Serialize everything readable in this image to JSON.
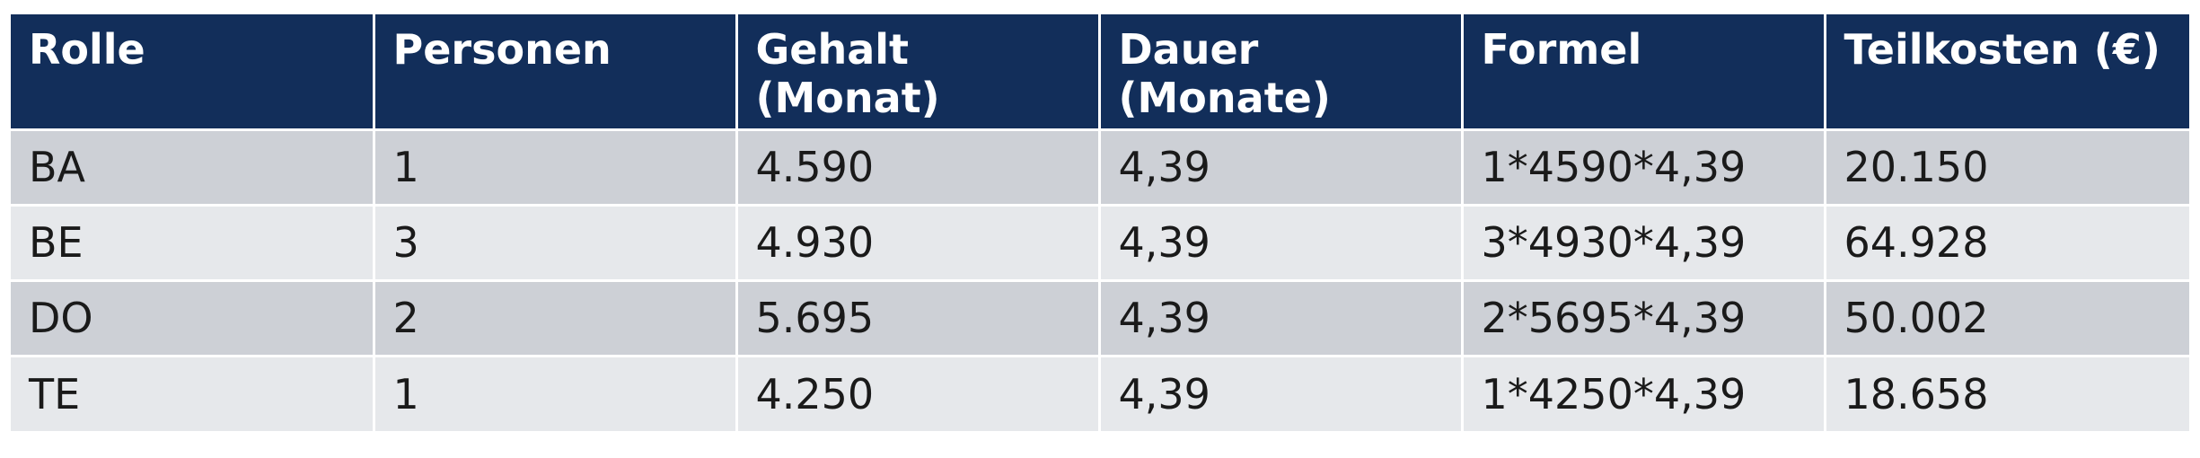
{
  "table": {
    "headers": [
      "Rolle",
      "Personen",
      "Gehalt\n(Monat)",
      "Dauer\n(Monate)",
      "Formel",
      "Teilkosten (€)"
    ],
    "rows": [
      [
        "BA",
        "1",
        "4.590",
        "4,39",
        "1*4590*4,39",
        "20.150"
      ],
      [
        "BE",
        "3",
        "4.930",
        "4,39",
        "3*4930*4,39",
        "64.928"
      ],
      [
        "DO",
        "2",
        "5.695",
        "4,39",
        "2*5695*4,39",
        "50.002"
      ],
      [
        "TE",
        "1",
        "4.250",
        "4,39",
        "1*4250*4,39",
        "18.658"
      ]
    ]
  },
  "colors": {
    "header_bg": "#122e5a",
    "header_text": "#ffffff",
    "row_dark": "#cdd0d6",
    "row_light": "#e6e8eb"
  }
}
